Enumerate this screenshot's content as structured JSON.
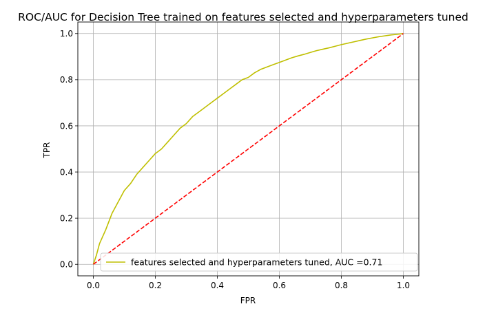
{
  "chart_data": {
    "type": "line",
    "title": "ROC/AUC for Decision Tree trained on features selected and hyperparameters tuned",
    "xlabel": "FPR",
    "ylabel": "TPR",
    "xlim": [
      -0.05,
      1.05
    ],
    "ylim": [
      -0.05,
      1.05
    ],
    "xticks": [
      "0.0",
      "0.2",
      "0.4",
      "0.6",
      "0.8",
      "1.0"
    ],
    "yticks": [
      "0.0",
      "0.2",
      "0.4",
      "0.6",
      "0.8",
      "1.0"
    ],
    "grid": true,
    "legend_position": "lower-right",
    "series": [
      {
        "name": "features selected and hyperparameters tuned, AUC =0.71",
        "color": "#bfbf00",
        "style": "solid",
        "x": [
          0.0,
          0.01,
          0.02,
          0.04,
          0.06,
          0.08,
          0.1,
          0.12,
          0.14,
          0.16,
          0.18,
          0.2,
          0.22,
          0.24,
          0.26,
          0.28,
          0.3,
          0.32,
          0.34,
          0.36,
          0.38,
          0.4,
          0.42,
          0.44,
          0.46,
          0.48,
          0.5,
          0.52,
          0.54,
          0.56,
          0.58,
          0.6,
          0.62,
          0.64,
          0.66,
          0.68,
          0.7,
          0.72,
          0.74,
          0.76,
          0.78,
          0.8,
          0.82,
          0.84,
          0.86,
          0.88,
          0.9,
          0.92,
          0.94,
          0.96,
          0.98,
          1.0
        ],
        "y": [
          0.0,
          0.04,
          0.09,
          0.15,
          0.22,
          0.27,
          0.32,
          0.35,
          0.39,
          0.42,
          0.45,
          0.48,
          0.5,
          0.53,
          0.56,
          0.59,
          0.61,
          0.64,
          0.66,
          0.68,
          0.7,
          0.72,
          0.74,
          0.76,
          0.78,
          0.8,
          0.81,
          0.83,
          0.845,
          0.855,
          0.865,
          0.875,
          0.885,
          0.895,
          0.903,
          0.91,
          0.918,
          0.926,
          0.932,
          0.938,
          0.945,
          0.952,
          0.958,
          0.964,
          0.97,
          0.976,
          0.981,
          0.986,
          0.99,
          0.994,
          0.997,
          1.0
        ]
      },
      {
        "name": "",
        "color": "#ff0000",
        "style": "dashed",
        "x": [
          0.0,
          1.0
        ],
        "y": [
          0.0,
          1.0
        ]
      }
    ]
  }
}
